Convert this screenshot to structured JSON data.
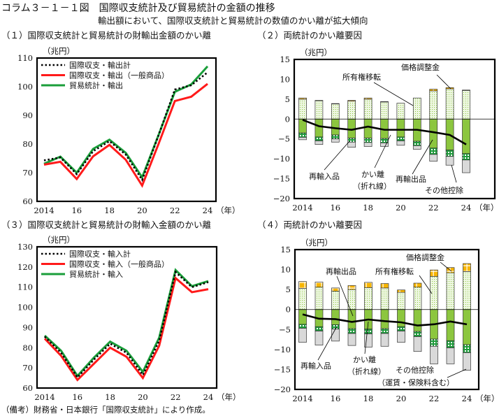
{
  "header": {
    "title": "コラム３－１－１図　国際収支統計及び貿易統計の金額の推移",
    "subtitle": "輸出額において、国際収支統計と貿易統計の数値のかい離が拡大傾向"
  },
  "footer": "（備考）財務省・日本銀行「国際収支統計」により作成。",
  "chart_data": [
    {
      "type": "line",
      "title": "（１）国際収支統計と貿易統計の財輸出金額のかい離",
      "ylabel": "（兆円）",
      "xlabel": "（年）",
      "x": [
        2014,
        2015,
        2016,
        2017,
        2018,
        2019,
        2020,
        2021,
        2022,
        2023,
        2024
      ],
      "xtick_labels": [
        "2014",
        "16",
        "18",
        "20",
        "22",
        "24"
      ],
      "ylim": [
        60,
        110
      ],
      "yticks": [
        "60",
        "70",
        "80",
        "90",
        "100",
        "110"
      ],
      "legend_position": "top-left",
      "series": [
        {
          "name": "国際収支・輸出計",
          "style": "dotted",
          "color": "#000000",
          "values": [
            74.3,
            75.3,
            69.5,
            77.5,
            81.0,
            76.3,
            67.5,
            83.0,
            99.0,
            100.5,
            105.0
          ]
        },
        {
          "name": "国際収支・輸出（一般商品）",
          "style": "solid",
          "color": "#ff1a1a",
          "values": [
            72.8,
            73.8,
            67.8,
            75.7,
            79.7,
            74.5,
            65.5,
            80.0,
            95.0,
            96.5,
            101.0
          ]
        },
        {
          "name": "貿易統計・輸出",
          "style": "solid",
          "color": "#1a9e3a",
          "values": [
            73.1,
            75.6,
            70.0,
            78.3,
            81.5,
            76.9,
            68.4,
            83.1,
            98.2,
            100.8,
            107.1
          ]
        }
      ]
    },
    {
      "type": "bar",
      "stacked": true,
      "title": "（２）両統計のかい離要因",
      "ylabel": "（兆円）",
      "xlabel": "（年）",
      "x": [
        2014,
        2015,
        2016,
        2017,
        2018,
        2019,
        2020,
        2021,
        2022,
        2023,
        2024
      ],
      "xtick_labels": [
        "2014",
        "16",
        "18",
        "20",
        "22",
        "24"
      ],
      "ylim": [
        -20,
        15
      ],
      "yticks": [
        "15",
        "10",
        "5",
        "0",
        "-5",
        "-10",
        "-15",
        "-20"
      ],
      "series": [
        {
          "name": "所有権移転",
          "values": [
            5.0,
            4.6,
            3.8,
            4.5,
            5.0,
            4.3,
            4.0,
            5.3,
            7.1,
            7.6,
            7.2
          ]
        },
        {
          "name": "価格調整金",
          "values": [
            0.3,
            0.1,
            0.1,
            0.2,
            0.3,
            0.1,
            0.0,
            0.0,
            0.4,
            0.3,
            0.1
          ]
        },
        {
          "name": "再輸出品",
          "values": [
            -3.5,
            -4.5,
            -4.0,
            -4.8,
            -4.8,
            -4.9,
            -4.5,
            -5.6,
            -7.3,
            -7.8,
            -8.7
          ]
        },
        {
          "name": "再輸入品",
          "values": [
            -1.1,
            -1.0,
            -1.0,
            -1.0,
            -1.1,
            -1.1,
            -1.0,
            -1.1,
            -1.6,
            -1.6,
            -1.6
          ]
        },
        {
          "name": "その他控除",
          "values": [
            -0.6,
            -0.9,
            -0.8,
            -1.3,
            -1.0,
            -0.9,
            -1.1,
            -0.9,
            -1.7,
            -2.2,
            -3.2
          ]
        }
      ],
      "line": {
        "name": "かい離（折れ線）",
        "values": [
          -0.2,
          -1.8,
          -2.3,
          -2.7,
          -1.9,
          -2.7,
          -2.7,
          -2.7,
          -3.3,
          -4.0,
          -6.4
        ]
      },
      "annotations": {
        "ownership": "所有権移転",
        "price": "価格調整金",
        "reimport": "再輸入品",
        "gap1": "かい離",
        "gap2": "（折れ線）",
        "reexport": "再輸出品",
        "other1": "その他控除"
      }
    },
    {
      "type": "line",
      "title": "（３）国際収支統計と貿易統計の財輸入金額のかい離",
      "ylabel": "（兆円）",
      "xlabel": "（年）",
      "x": [
        2014,
        2015,
        2016,
        2017,
        2018,
        2019,
        2020,
        2021,
        2022,
        2023,
        2024
      ],
      "xtick_labels": [
        "2014",
        "16",
        "18",
        "20",
        "22",
        "24"
      ],
      "ylim": [
        60,
        130
      ],
      "yticks": [
        "60",
        "70",
        "80",
        "90",
        "100",
        "110",
        "120",
        "130"
      ],
      "legend_position": "top-left",
      "series": [
        {
          "name": "国際収支・輸入計",
          "style": "dotted",
          "color": "#000000",
          "values": [
            85.5,
            77.5,
            65.3,
            74.0,
            82.0,
            77.5,
            66.5,
            83.5,
            117.5,
            110.0,
            112.5
          ]
        },
        {
          "name": "国際収支・輸入（一般商品）",
          "style": "solid",
          "color": "#ff1a1a",
          "values": [
            84.5,
            76.0,
            64.0,
            72.0,
            80.0,
            75.5,
            65.0,
            81.0,
            114.5,
            107.5,
            109.0
          ]
        },
        {
          "name": "貿易統計・輸入",
          "style": "solid",
          "color": "#1a9e3a",
          "values": [
            86.0,
            78.5,
            66.0,
            75.0,
            83.0,
            78.5,
            68.0,
            85.0,
            118.5,
            110.5,
            113.0
          ]
        }
      ]
    },
    {
      "type": "bar",
      "stacked": true,
      "title": "（４）両統計のかい離要因",
      "ylabel": "（兆円）",
      "xlabel": "（年）",
      "x": [
        2014,
        2015,
        2016,
        2017,
        2018,
        2019,
        2020,
        2021,
        2022,
        2023,
        2024
      ],
      "xtick_labels": [
        "2014",
        "16",
        "18",
        "20",
        "22",
        "24"
      ],
      "ylim": [
        -20,
        15
      ],
      "yticks": [
        "15",
        "10",
        "5",
        "0",
        "-5",
        "-10",
        "-15",
        "-20"
      ],
      "series": [
        {
          "name": "所有権移転",
          "values": [
            5.3,
            5.6,
            4.6,
            5.0,
            5.5,
            5.4,
            4.3,
            5.6,
            8.3,
            9.2,
            9.5
          ]
        },
        {
          "name": "価格調整金",
          "values": [
            1.7,
            1.3,
            0.8,
            1.0,
            1.3,
            1.1,
            0.6,
            1.0,
            1.6,
            1.3,
            2.0
          ]
        },
        {
          "name": "再輸出品",
          "values": [
            -3.7,
            -4.3,
            -3.8,
            -4.8,
            -4.9,
            -4.8,
            -4.3,
            -5.5,
            -7.4,
            -7.8,
            -8.8
          ]
        },
        {
          "name": "再輸入品",
          "values": [
            -1.0,
            -1.1,
            -1.1,
            -1.2,
            -1.2,
            -1.2,
            -1.1,
            -1.3,
            -1.8,
            -1.8,
            -2.0
          ]
        },
        {
          "name": "その他控除（運賃・保険料含む）",
          "values": [
            -3.5,
            -3.5,
            -3.0,
            -3.0,
            -3.3,
            -3.2,
            -2.8,
            -3.7,
            -4.4,
            -4.0,
            -4.4
          ]
        }
      ],
      "line": {
        "name": "かい離（折れ線）",
        "values": [
          -1.2,
          -2.3,
          -2.4,
          -3.1,
          -2.5,
          -2.9,
          -3.2,
          -4.0,
          -3.7,
          -3.0,
          -3.7
        ]
      },
      "annotations": {
        "ownership": "所有権移転",
        "price": "価格調整金",
        "reimport": "再輸入品",
        "gap1": "かい離",
        "gap2": "（折れ線）",
        "reexport": "再輸出品",
        "other1": "その他控除",
        "other2": "（運賃・保険料含む）"
      }
    }
  ]
}
